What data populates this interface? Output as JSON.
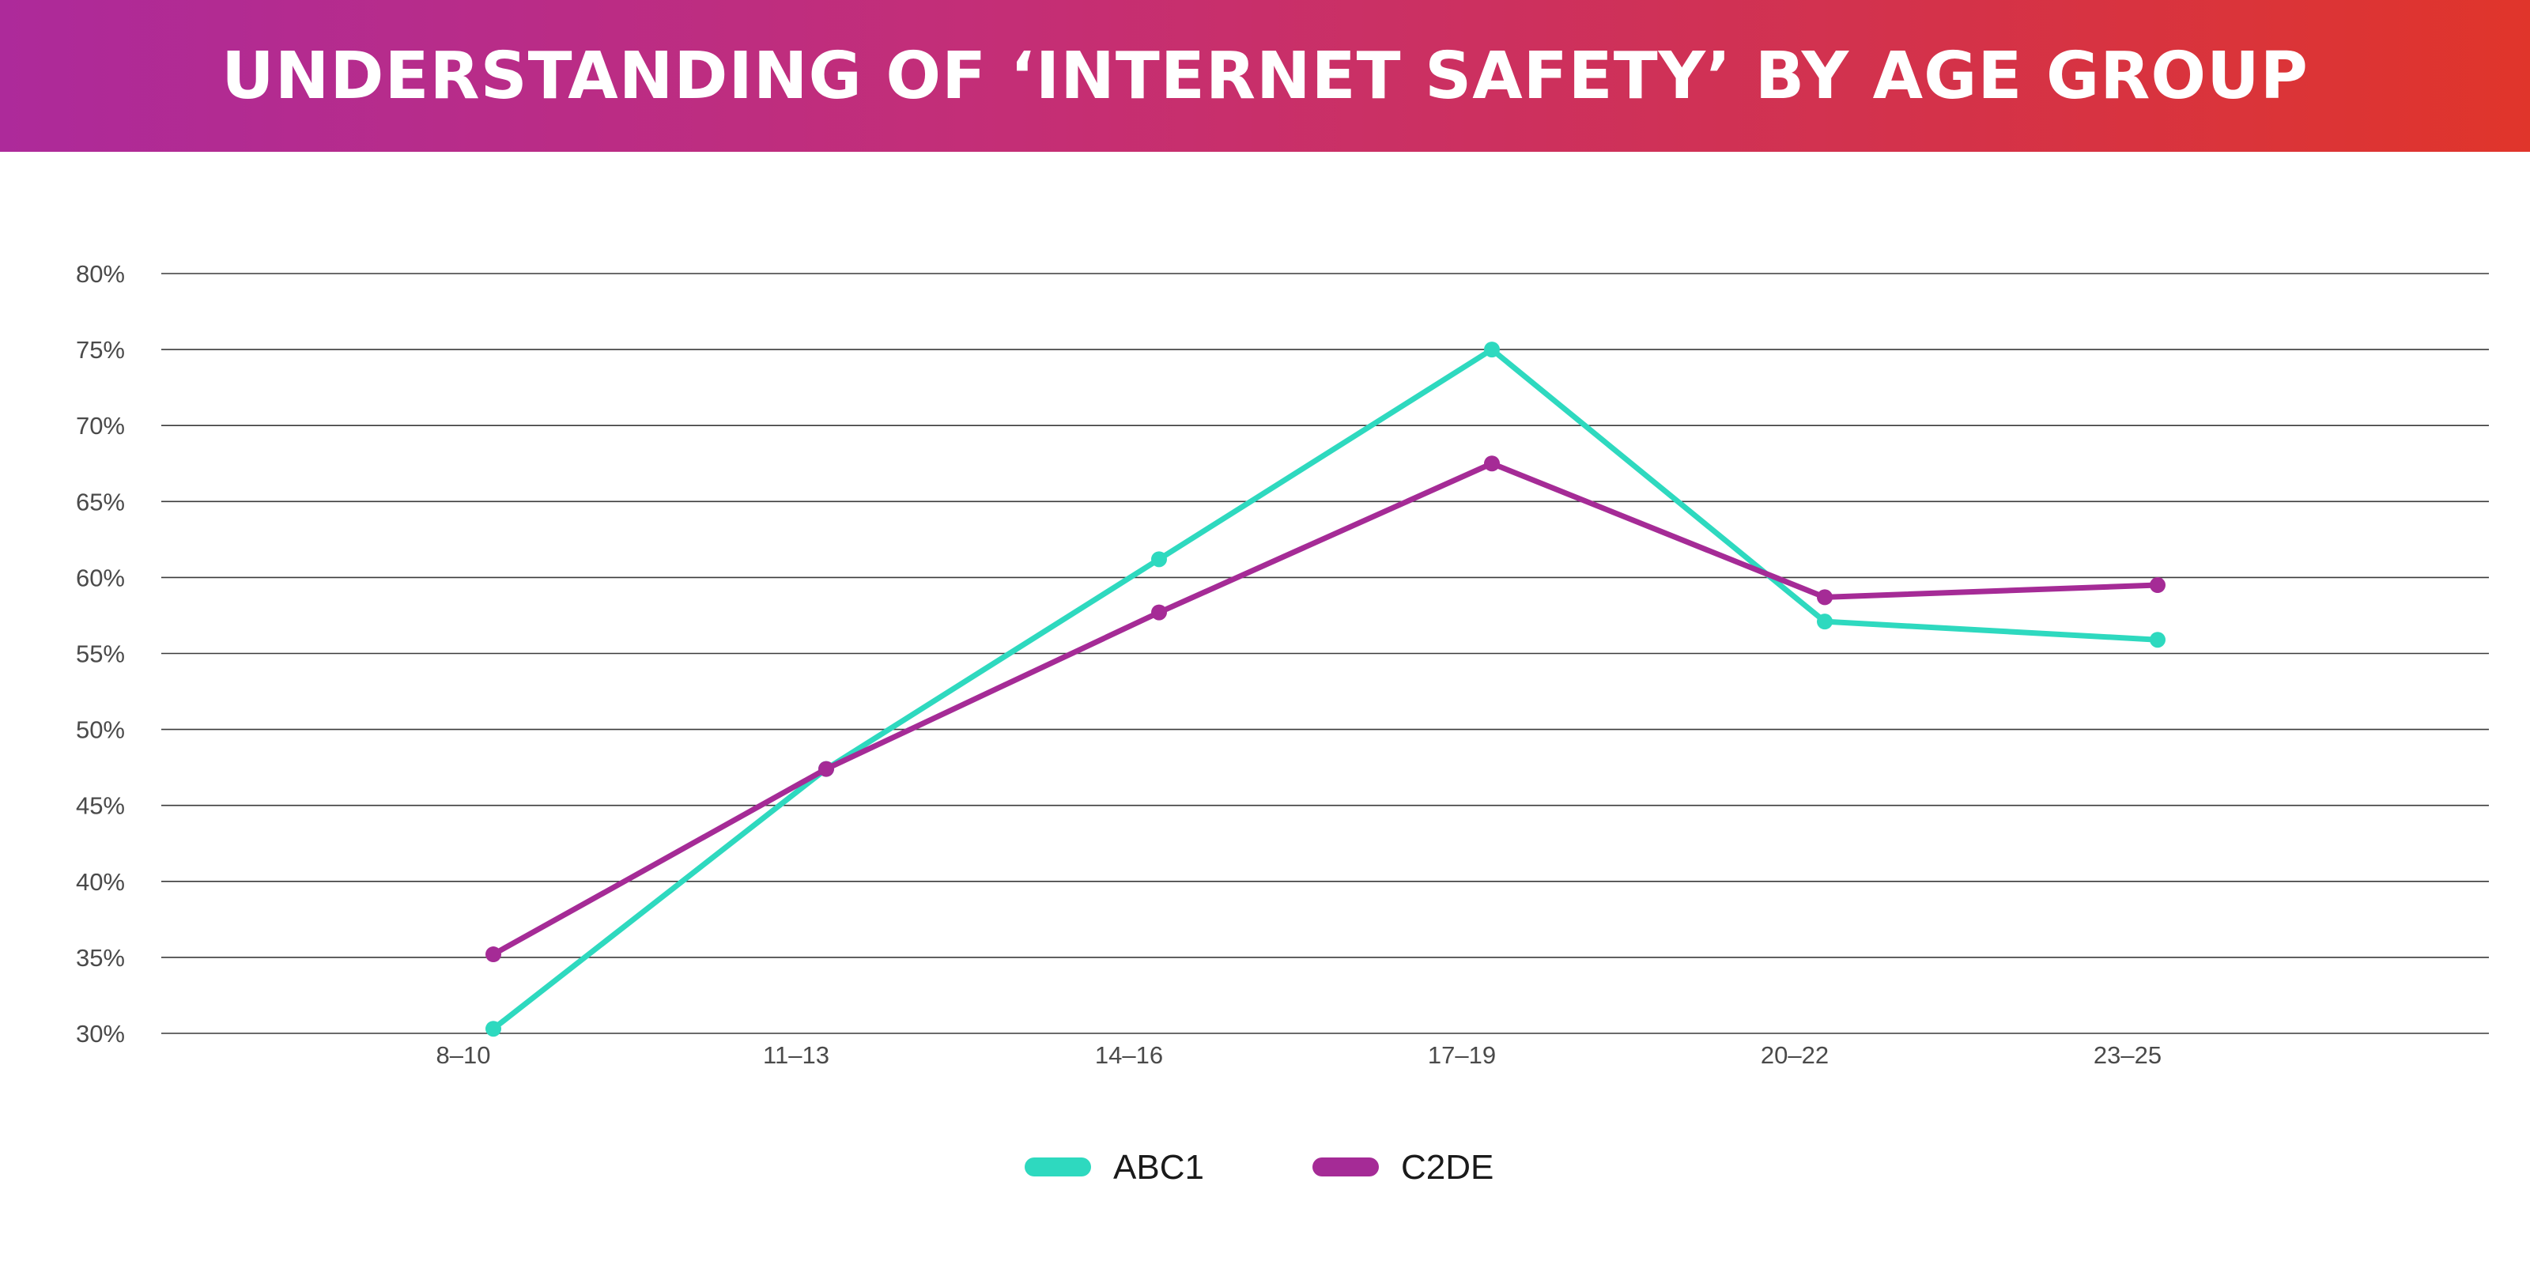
{
  "header": {
    "title": "UNDERSTANDING OF ‘INTERNET SAFETY’ BY AGE GROUP"
  },
  "chart_data": {
    "type": "line",
    "title": "UNDERSTANDING OF ‘INTERNET SAFETY’ BY AGE GROUP",
    "categories": [
      "8–10",
      "11–13",
      "14–16",
      "17–19",
      "20–22",
      "23–25"
    ],
    "y_ticks": [
      "30%",
      "35%",
      "40%",
      "45%",
      "50%",
      "55%",
      "60%",
      "65%",
      "70%",
      "75%",
      "80%"
    ],
    "ylim": [
      30,
      80
    ],
    "grid": true,
    "legend_position": "bottom-center",
    "series": [
      {
        "name": "ABC1",
        "color": "#2ed9bf",
        "values": [
          30.3,
          47.4,
          61.2,
          75.0,
          57.1,
          55.9
        ]
      },
      {
        "name": "C2DE",
        "color": "#a52b96",
        "values": [
          35.2,
          47.4,
          57.7,
          67.5,
          58.7,
          59.5
        ]
      }
    ]
  }
}
